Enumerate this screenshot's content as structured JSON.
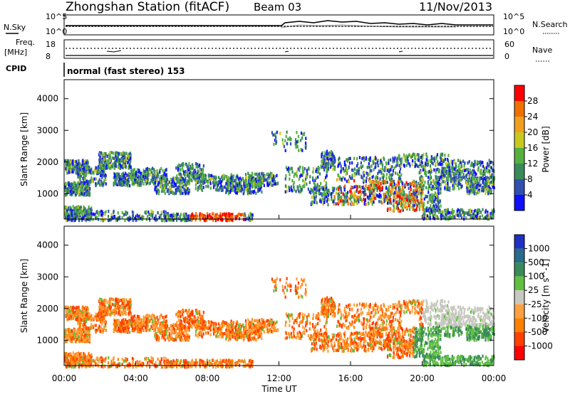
{
  "header": {
    "station": "Zhongshan Station (fitACF)",
    "beam": "Beam 03",
    "date": "11/Nov/2013"
  },
  "top_panel": {
    "nsky_label": "N.Sky",
    "nsky_ticks": [
      "10^5",
      "10^0"
    ],
    "nsearch_label": "N.Search",
    "nsearch_ticks": [
      "10^5",
      "10^0"
    ],
    "freq_label_1": "Freq.",
    "freq_label_2": "[MHz]",
    "freq_ticks": [
      "18",
      "8"
    ],
    "nave_label": "Nave",
    "nave_ticks": [
      "60",
      "0"
    ],
    "cpid_label": "CPID",
    "cpid_text": "normal (fast stereo) 153"
  },
  "colors": {
    "power_scale": [
      "#1010ff",
      "#3050b0",
      "#3a8a5a",
      "#55b040",
      "#c8c820",
      "#f0a020",
      "#f07000",
      "#ff0000"
    ],
    "velocity_scale": [
      "#ff0000",
      "#ff4000",
      "#ff8000",
      "#ffa040",
      "#c8c8c0",
      "#60c040",
      "#3a8a5a",
      "#2a6a8a",
      "#2030c0"
    ]
  },
  "chart_data": [
    {
      "type": "heatmap",
      "title": "",
      "ylabel": "Slant Range [km]",
      "xlabel": "",
      "y_ticks": [
        "1000",
        "2000",
        "3000",
        "4000"
      ],
      "x_ticks": [],
      "ylim": [
        200,
        4600
      ],
      "xlim": [
        0,
        24
      ],
      "colorbar": {
        "label": "Power [dB]",
        "ticks": [
          "4",
          "8",
          "12",
          "16",
          "20",
          "24",
          "28"
        ],
        "range": [
          0,
          32
        ]
      }
    },
    {
      "type": "heatmap",
      "title": "",
      "ylabel": "Slant Range [km]",
      "xlabel": "Time UT",
      "y_ticks": [
        "1000",
        "2000",
        "3000",
        "4000"
      ],
      "x_ticks": [
        "00:00",
        "04:00",
        "08:00",
        "12:00",
        "16:00",
        "20:00",
        "00:00"
      ],
      "ylim": [
        200,
        4600
      ],
      "xlim": [
        0,
        24
      ],
      "colorbar": {
        "label": "Velocity [m s^-1]",
        "ticks": [
          "1000",
          "500",
          "100",
          "25",
          "-25",
          "-100",
          "-500",
          "-1000"
        ]
      }
    }
  ]
}
